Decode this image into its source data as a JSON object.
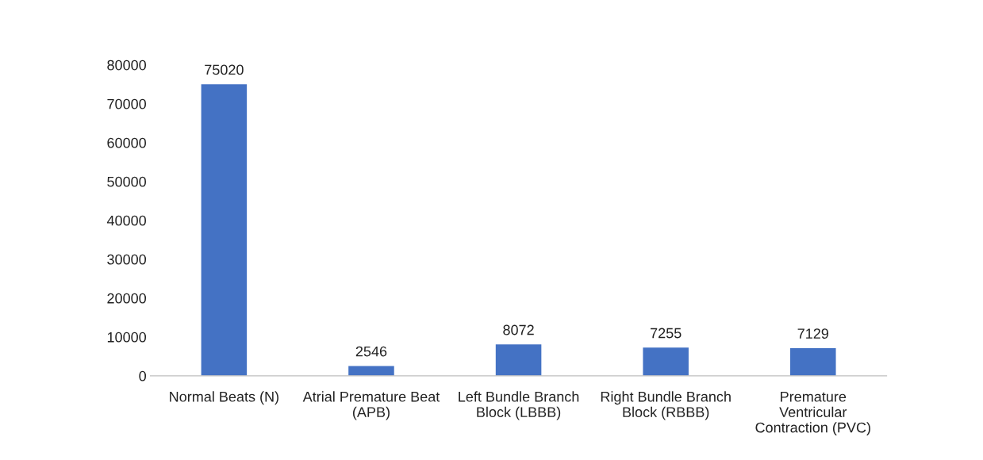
{
  "chart_data": {
    "type": "bar",
    "categories": [
      "Normal Beats (N)",
      "Atrial Premature Beat\n(APB)",
      "Left Bundle Branch\nBlock (LBBB)",
      "Right Bundle Branch\nBlock (RBBB)",
      "Premature\nVentricular\nContraction (PVC)"
    ],
    "values": [
      75020,
      2546,
      8072,
      7255,
      7129
    ],
    "color": "#4472c4",
    "ylim": [
      0,
      80000
    ],
    "yticks": [
      0,
      10000,
      20000,
      30000,
      40000,
      50000,
      60000,
      70000,
      80000
    ],
    "data_labels": true,
    "grid": false,
    "legend": false
  }
}
